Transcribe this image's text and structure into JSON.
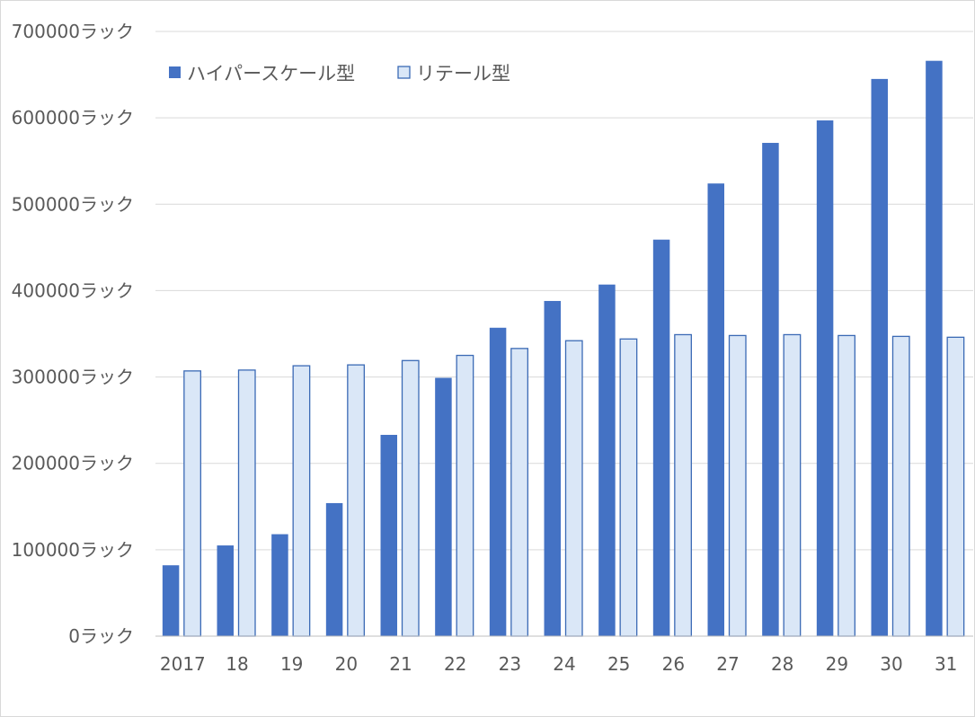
{
  "chart_data": {
    "type": "bar",
    "title": "",
    "xlabel": "",
    "ylabel": "",
    "categories": [
      "2017",
      "18",
      "19",
      "20",
      "21",
      "22",
      "23",
      "24",
      "25",
      "26",
      "27",
      "28",
      "29",
      "30",
      "31"
    ],
    "series": [
      {
        "name": "ハイパースケール型",
        "color": "#4472c4",
        "values": [
          82000,
          105000,
          118000,
          154000,
          233000,
          299000,
          357000,
          388000,
          407000,
          459000,
          524000,
          571000,
          597000,
          645000,
          666000
        ]
      },
      {
        "name": "リテール型",
        "color": "#dae7f7",
        "stroke": "#3b6ab5",
        "values": [
          307000,
          308000,
          313000,
          314000,
          319000,
          325000,
          333000,
          342000,
          344000,
          349000,
          348000,
          349000,
          348000,
          347000,
          346000
        ]
      }
    ],
    "yticks": [
      0,
      100000,
      200000,
      300000,
      400000,
      500000,
      600000,
      700000
    ],
    "ytick_labels": [
      "0ラック",
      "100000ラック",
      "200000ラック",
      "300000ラック",
      "400000ラック",
      "500000ラック",
      "600000ラック",
      "700000ラック"
    ],
    "ylim": [
      0,
      700000
    ],
    "grid": true,
    "legend_position": "top-left"
  }
}
